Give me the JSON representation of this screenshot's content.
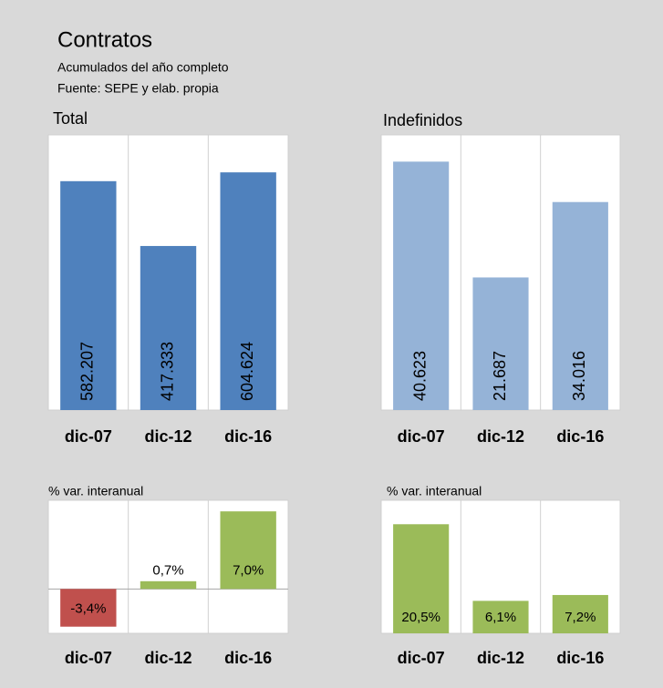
{
  "header": {
    "title": "Contratos",
    "lines": [
      "Acumulados del año completo",
      "Fuente: SEPE y elab. propia"
    ]
  },
  "chart_data": [
    {
      "type": "bar",
      "title": "Total",
      "categories": [
        "dic-07",
        "dic-12",
        "dic-16"
      ],
      "values": [
        582207,
        417333,
        604624
      ],
      "value_labels": [
        "582.207",
        "417.333",
        "604.624"
      ],
      "color": "#4f81bd",
      "ylim": [
        0,
        700000
      ],
      "label_orientation": "vertical"
    },
    {
      "type": "bar",
      "title": "Indefinidos",
      "categories": [
        "dic-07",
        "dic-12",
        "dic-16"
      ],
      "values": [
        40623,
        21687,
        34016
      ],
      "value_labels": [
        "40.623",
        "21.687",
        "34.016"
      ],
      "color": "#95b3d7",
      "ylim": [
        0,
        45000
      ],
      "label_orientation": "vertical"
    },
    {
      "type": "bar",
      "title": "% var. interanual",
      "categories": [
        "dic-07",
        "dic-12",
        "dic-16"
      ],
      "values": [
        -3.4,
        0.7,
        7.0
      ],
      "value_labels": [
        "-3,4%",
        "0,7%",
        "7,0%"
      ],
      "colors": [
        "#c0504d",
        "#9bbb59",
        "#9bbb59"
      ],
      "ylim": [
        -4,
        8
      ],
      "label_orientation": "horizontal"
    },
    {
      "type": "bar",
      "title": "% var. interanual",
      "categories": [
        "dic-07",
        "dic-12",
        "dic-16"
      ],
      "values": [
        20.5,
        6.1,
        7.2
      ],
      "value_labels": [
        "20,5%",
        "6,1%",
        "7,2%"
      ],
      "colors": [
        "#9bbb59",
        "#9bbb59",
        "#9bbb59"
      ],
      "ylim": [
        0,
        25
      ],
      "label_orientation": "horizontal"
    }
  ]
}
